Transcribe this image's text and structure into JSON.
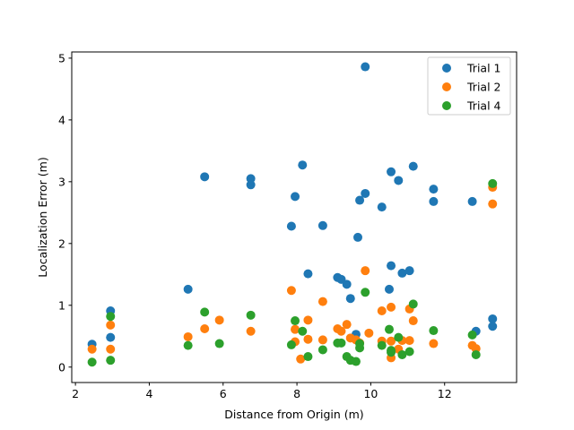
{
  "chart_data": {
    "type": "scatter",
    "title": "",
    "xlabel": "Distance from Origin (m)",
    "ylabel": "Localization Error (m)",
    "xlim": [
      1.9,
      13.95
    ],
    "ylim": [
      -0.25,
      5.1
    ],
    "xticks": [
      2,
      4,
      6,
      8,
      10,
      12
    ],
    "yticks": [
      0,
      1,
      2,
      3,
      4,
      5
    ],
    "grid": false,
    "legend_position": "top-right",
    "series": [
      {
        "name": "Trial 1",
        "color": "#1f77b4",
        "points": [
          [
            2.45,
            0.37
          ],
          [
            2.95,
            0.91
          ],
          [
            2.95,
            0.48
          ],
          [
            5.05,
            1.26
          ],
          [
            5.5,
            3.08
          ],
          [
            6.75,
            3.05
          ],
          [
            6.75,
            2.95
          ],
          [
            7.85,
            2.28
          ],
          [
            7.95,
            2.76
          ],
          [
            8.15,
            3.27
          ],
          [
            8.3,
            1.51
          ],
          [
            8.7,
            2.29
          ],
          [
            9.1,
            1.45
          ],
          [
            9.2,
            1.42
          ],
          [
            9.35,
            1.34
          ],
          [
            9.45,
            1.11
          ],
          [
            9.6,
            0.53
          ],
          [
            9.65,
            2.1
          ],
          [
            9.7,
            2.7
          ],
          [
            9.85,
            4.86
          ],
          [
            9.85,
            2.81
          ],
          [
            10.3,
            2.59
          ],
          [
            10.5,
            1.26
          ],
          [
            10.55,
            1.64
          ],
          [
            10.55,
            3.16
          ],
          [
            10.75,
            3.02
          ],
          [
            10.85,
            1.52
          ],
          [
            11.05,
            1.56
          ],
          [
            11.15,
            3.25
          ],
          [
            11.7,
            2.88
          ],
          [
            11.7,
            2.68
          ],
          [
            12.75,
            2.68
          ],
          [
            12.85,
            0.58
          ],
          [
            13.3,
            0.66
          ],
          [
            13.3,
            0.78
          ]
        ]
      },
      {
        "name": "Trial 2",
        "color": "#ff7f0e",
        "points": [
          [
            2.45,
            0.29
          ],
          [
            2.95,
            0.68
          ],
          [
            2.95,
            0.29
          ],
          [
            5.05,
            0.49
          ],
          [
            5.5,
            0.62
          ],
          [
            5.9,
            0.76
          ],
          [
            6.75,
            0.58
          ],
          [
            7.85,
            1.24
          ],
          [
            7.95,
            0.61
          ],
          [
            7.95,
            0.41
          ],
          [
            8.1,
            0.13
          ],
          [
            8.3,
            0.76
          ],
          [
            8.3,
            0.45
          ],
          [
            8.7,
            1.06
          ],
          [
            8.7,
            0.44
          ],
          [
            9.1,
            0.62
          ],
          [
            9.2,
            0.58
          ],
          [
            9.35,
            0.69
          ],
          [
            9.45,
            0.47
          ],
          [
            9.6,
            0.44
          ],
          [
            9.7,
            0.39
          ],
          [
            9.85,
            1.56
          ],
          [
            9.95,
            0.55
          ],
          [
            10.3,
            0.91
          ],
          [
            10.3,
            0.42
          ],
          [
            10.55,
            0.97
          ],
          [
            10.55,
            0.42
          ],
          [
            10.55,
            0.15
          ],
          [
            10.75,
            0.29
          ],
          [
            10.85,
            0.43
          ],
          [
            11.05,
            0.94
          ],
          [
            11.05,
            0.43
          ],
          [
            11.15,
            0.75
          ],
          [
            11.7,
            0.38
          ],
          [
            12.75,
            0.35
          ],
          [
            12.85,
            0.3
          ],
          [
            13.3,
            2.91
          ],
          [
            13.3,
            2.64
          ]
        ]
      },
      {
        "name": "Trial 4",
        "color": "#2ca02c",
        "points": [
          [
            2.45,
            0.08
          ],
          [
            2.95,
            0.82
          ],
          [
            2.95,
            0.11
          ],
          [
            5.05,
            0.35
          ],
          [
            5.5,
            0.89
          ],
          [
            5.9,
            0.38
          ],
          [
            6.75,
            0.84
          ],
          [
            7.85,
            0.36
          ],
          [
            7.95,
            0.75
          ],
          [
            8.15,
            0.58
          ],
          [
            8.3,
            0.17
          ],
          [
            8.7,
            0.28
          ],
          [
            9.1,
            0.39
          ],
          [
            9.2,
            0.39
          ],
          [
            9.35,
            0.17
          ],
          [
            9.45,
            0.11
          ],
          [
            9.6,
            0.09
          ],
          [
            9.7,
            0.31
          ],
          [
            9.7,
            0.38
          ],
          [
            9.85,
            1.21
          ],
          [
            10.3,
            0.35
          ],
          [
            10.5,
            0.61
          ],
          [
            10.55,
            0.27
          ],
          [
            10.55,
            0.24
          ],
          [
            10.75,
            0.48
          ],
          [
            10.85,
            0.2
          ],
          [
            11.05,
            0.25
          ],
          [
            11.15,
            1.02
          ],
          [
            11.7,
            0.59
          ],
          [
            12.75,
            0.52
          ],
          [
            12.85,
            0.2
          ],
          [
            13.3,
            2.97
          ]
        ]
      }
    ]
  }
}
